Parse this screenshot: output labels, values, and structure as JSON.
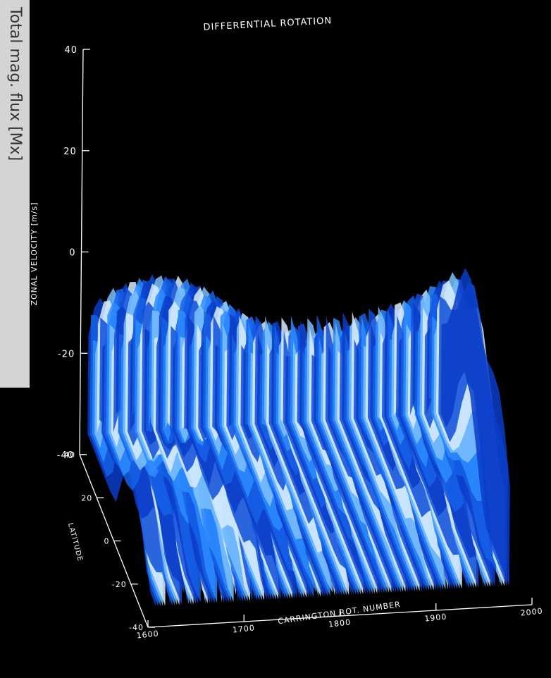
{
  "side_label": "Total mag. flux [Mx]",
  "chart_data": {
    "type": "surface",
    "title": "DIFFERENTIAL ROTATION",
    "xlabel": "CARRINGTON ROT. NUMBER",
    "ylabel": "LATITUDE",
    "zlabel": "ZONAL VELOCITY [m/s]",
    "xlim": [
      1600,
      2000
    ],
    "xticks": [
      1600,
      1700,
      1800,
      1900,
      2000
    ],
    "ylim": [
      -40,
      40
    ],
    "yticks": [
      -40,
      -20,
      0,
      20,
      40
    ],
    "zlim": [
      -40,
      40
    ],
    "zticks": [
      -40,
      -20,
      0,
      20,
      40
    ],
    "color": "#1a6cf0"
  }
}
